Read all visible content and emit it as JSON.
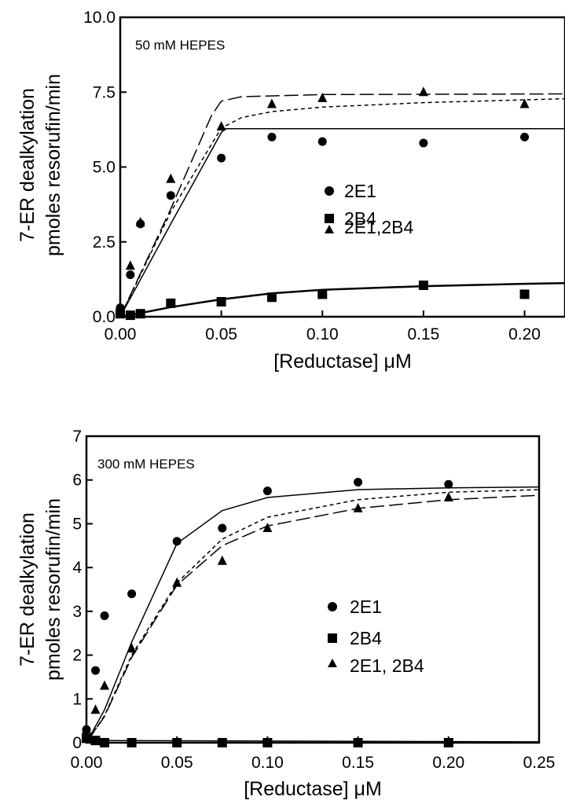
{
  "chart_data": [
    {
      "type": "scatter",
      "condition_label": "50 mM HEPES",
      "xlabel": "[Reductase] μM",
      "ylabel_line1": "7-ER dealkylation",
      "ylabel_line2": "pmoles resorufin/min",
      "xlim": [
        0,
        0.22
      ],
      "ylim": [
        0,
        10
      ],
      "x_ticks": [
        "0.00",
        "0.05",
        "0.10",
        "0.15",
        "0.20"
      ],
      "x_tick_values": [
        0,
        0.05,
        0.1,
        0.15,
        0.2
      ],
      "y_ticks": [
        "0.0",
        "2.5",
        "5.0",
        "7.5",
        "10.0"
      ],
      "y_tick_values": [
        0,
        2.5,
        5,
        7.5,
        10
      ],
      "legend_position": "center-right",
      "series": [
        {
          "name": "2E1",
          "marker": "circle",
          "points": [
            [
              0,
              0.3
            ],
            [
              0.005,
              1.4
            ],
            [
              0.01,
              3.1
            ],
            [
              0.025,
              4.05
            ],
            [
              0.05,
              5.3
            ],
            [
              0.075,
              6.0
            ],
            [
              0.1,
              5.85
            ],
            [
              0.15,
              5.8
            ],
            [
              0.2,
              6.0
            ]
          ],
          "fit": {
            "style": "solid",
            "points": [
              [
                0,
                0
              ],
              [
                0.025,
                3.1
              ],
              [
                0.05,
                6.15
              ],
              [
                0.052,
                6.28
              ],
              [
                0.22,
                6.28
              ]
            ]
          }
        },
        {
          "name": "2B4",
          "marker": "square",
          "points": [
            [
              0,
              0.1
            ],
            [
              0.005,
              0.05
            ],
            [
              0.01,
              0.1
            ],
            [
              0.025,
              0.45
            ],
            [
              0.05,
              0.5
            ],
            [
              0.075,
              0.65
            ],
            [
              0.1,
              0.75
            ],
            [
              0.15,
              1.05
            ],
            [
              0.2,
              0.75
            ]
          ],
          "fit": {
            "style": "solid-thick",
            "points": [
              [
                0,
                0
              ],
              [
                0.01,
                0.12
              ],
              [
                0.025,
                0.32
              ],
              [
                0.05,
                0.58
              ],
              [
                0.075,
                0.78
              ],
              [
                0.1,
                0.9
              ],
              [
                0.15,
                1.02
              ],
              [
                0.2,
                1.1
              ],
              [
                0.22,
                1.12
              ]
            ]
          }
        },
        {
          "name": "2E1,2B4",
          "marker": "triangle",
          "points": [
            [
              0,
              0.2
            ],
            [
              0.005,
              1.7
            ],
            [
              0.01,
              3.15
            ],
            [
              0.025,
              4.6
            ],
            [
              0.05,
              6.35
            ],
            [
              0.075,
              7.1
            ],
            [
              0.1,
              7.3
            ],
            [
              0.15,
              7.5
            ],
            [
              0.2,
              7.1
            ]
          ],
          "fit": {
            "style": "long-dash",
            "points": [
              [
                0,
                0
              ],
              [
                0.025,
                3.6
              ],
              [
                0.045,
                6.7
              ],
              [
                0.05,
                7.2
              ],
              [
                0.06,
                7.35
              ],
              [
                0.1,
                7.42
              ],
              [
                0.22,
                7.44
              ]
            ]
          }
        }
      ],
      "extra_fits": [
        {
          "style": "short-dash",
          "points": [
            [
              0,
              0
            ],
            [
              0.025,
              3.5
            ],
            [
              0.05,
              6.3
            ],
            [
              0.06,
              6.65
            ],
            [
              0.075,
              6.85
            ],
            [
              0.1,
              7.0
            ],
            [
              0.15,
              7.15
            ],
            [
              0.22,
              7.28
            ]
          ]
        }
      ]
    },
    {
      "type": "scatter",
      "condition_label": "300 mM HEPES",
      "xlabel": "[Reductase] μM",
      "ylabel_line1": "7-ER dealkylation",
      "ylabel_line2": "pmoles resorufin/min",
      "xlim": [
        0,
        0.25
      ],
      "ylim": [
        0,
        7
      ],
      "x_ticks": [
        "0.00",
        "0.05",
        "0.10",
        "0.15",
        "0.20",
        "0.25"
      ],
      "x_tick_values": [
        0,
        0.05,
        0.1,
        0.15,
        0.2,
        0.25
      ],
      "y_ticks": [
        "0",
        "1",
        "2",
        "3",
        "4",
        "5",
        "6",
        "7"
      ],
      "y_tick_values": [
        0,
        1,
        2,
        3,
        4,
        5,
        6,
        7
      ],
      "legend_position": "center-right",
      "series": [
        {
          "name": "2E1",
          "marker": "circle",
          "points": [
            [
              0,
              0.3
            ],
            [
              0.005,
              1.65
            ],
            [
              0.01,
              2.9
            ],
            [
              0.025,
              3.4
            ],
            [
              0.05,
              4.6
            ],
            [
              0.075,
              4.9
            ],
            [
              0.1,
              5.75
            ],
            [
              0.15,
              5.95
            ],
            [
              0.2,
              5.9
            ]
          ],
          "fit": {
            "style": "solid",
            "points": [
              [
                0,
                0
              ],
              [
                0.01,
                0.75
              ],
              [
                0.025,
                2.3
              ],
              [
                0.05,
                4.55
              ],
              [
                0.075,
                5.3
              ],
              [
                0.1,
                5.6
              ],
              [
                0.15,
                5.78
              ],
              [
                0.2,
                5.82
              ],
              [
                0.25,
                5.84
              ]
            ]
          }
        },
        {
          "name": "2B4",
          "marker": "square",
          "points": [
            [
              0,
              0.1
            ],
            [
              0.005,
              0.05
            ],
            [
              0.01,
              0.0
            ],
            [
              0.025,
              0.0
            ],
            [
              0.05,
              0.0
            ],
            [
              0.075,
              0.0
            ],
            [
              0.1,
              0.0
            ],
            [
              0.15,
              0.0
            ],
            [
              0.2,
              0.0
            ]
          ],
          "fit": {
            "style": "solid",
            "points": [
              [
                0,
                0.05
              ],
              [
                0.25,
                0.02
              ]
            ]
          }
        },
        {
          "name": "2E1, 2B4",
          "marker": "triangle",
          "points": [
            [
              0,
              0.3
            ],
            [
              0.005,
              0.75
            ],
            [
              0.01,
              1.3
            ],
            [
              0.025,
              2.15
            ],
            [
              0.05,
              3.65
            ],
            [
              0.075,
              4.15
            ],
            [
              0.1,
              4.9
            ],
            [
              0.15,
              5.35
            ],
            [
              0.2,
              5.6
            ]
          ],
          "fit": {
            "style": "long-dash",
            "points": [
              [
                0,
                0
              ],
              [
                0.01,
                0.6
              ],
              [
                0.025,
                1.95
              ],
              [
                0.05,
                3.6
              ],
              [
                0.075,
                4.5
              ],
              [
                0.1,
                4.95
              ],
              [
                0.15,
                5.35
              ],
              [
                0.2,
                5.55
              ],
              [
                0.25,
                5.65
              ]
            ]
          }
        }
      ],
      "extra_fits": [
        {
          "style": "short-dash",
          "points": [
            [
              0,
              0
            ],
            [
              0.01,
              0.62
            ],
            [
              0.025,
              2.0
            ],
            [
              0.05,
              3.65
            ],
            [
              0.075,
              4.65
            ],
            [
              0.1,
              5.15
            ],
            [
              0.15,
              5.55
            ],
            [
              0.2,
              5.72
            ],
            [
              0.25,
              5.78
            ]
          ]
        }
      ]
    }
  ]
}
